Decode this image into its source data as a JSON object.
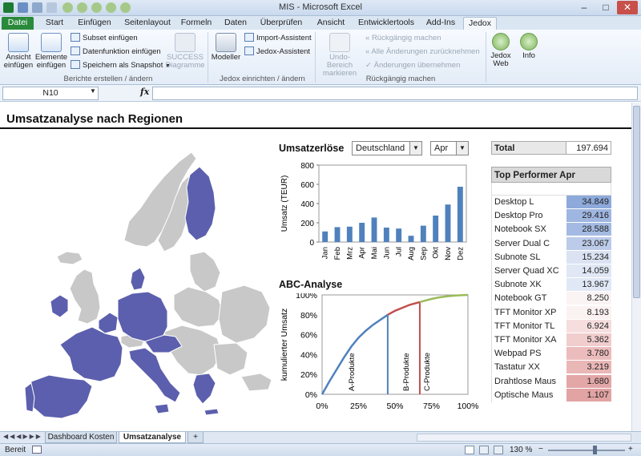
{
  "window": {
    "title": "MIS - Microsoft Excel"
  },
  "tabs": [
    {
      "label": "Datei"
    },
    {
      "label": "Start"
    },
    {
      "label": "Einfügen"
    },
    {
      "label": "Seitenlayout"
    },
    {
      "label": "Formeln"
    },
    {
      "label": "Daten"
    },
    {
      "label": "Überprüfen"
    },
    {
      "label": "Ansicht"
    },
    {
      "label": "Entwicklertools"
    },
    {
      "label": "Add-Ins"
    },
    {
      "label": "Jedox"
    }
  ],
  "ribbon": {
    "ansicht_einfuegen": [
      "Ansicht",
      "einfügen"
    ],
    "elemente_einfuegen": [
      "Elemente",
      "einfügen"
    ],
    "subset_einfuegen": "Subset einfügen",
    "datenfunktion_einfuegen": "Datenfunktion einfügen",
    "speichern_snapshot": "Speichern als Snapshot",
    "success_diagramme": [
      "SUCCESS",
      "Diagramme"
    ],
    "group_berichte": "Berichte erstellen / ändern",
    "modeller": "Modeller",
    "import_assistent": "Import-Assistent",
    "jedox_assistent": "Jedox-Assistent",
    "group_jedox": "Jedox einrichten / ändern",
    "undo_bereich": [
      "Undo-Bereich",
      "markieren"
    ],
    "rueckgaengig_machen": "Rückgängig machen",
    "alle_aenderungen": "Alle Änderungen zurücknehmen",
    "aenderungen_uebernehmen": "Änderungen übernehmen",
    "group_rueckgaengig": "Rückgängig machen",
    "jedox_web": [
      "Jedox",
      "Web"
    ],
    "info": "Info"
  },
  "formula_bar": {
    "name_box": "N10",
    "fx": "fx",
    "value": ""
  },
  "sheet": {
    "heading": "Umsatzanalyse nach Regionen",
    "umsatz_title": "Umsatzerlöse",
    "country_select": "Deutschland",
    "month_select": "Apr",
    "abc_title": "ABC-Analyse",
    "total_label": "Total",
    "total_value": "197.694",
    "top_title": "Top Performer Apr",
    "top_performers": [
      {
        "name": "Desktop L",
        "value": "34.849",
        "color": "#8eaadb"
      },
      {
        "name": "Desktop Pro",
        "value": "29.416",
        "color": "#9fb6e0"
      },
      {
        "name": "Notebook SX",
        "value": "28.588",
        "color": "#a4bae2"
      },
      {
        "name": "Server Dual C",
        "value": "23.067",
        "color": "#bccbe9"
      },
      {
        "name": "Subnote SL",
        "value": "15.234",
        "color": "#dbe3f3"
      },
      {
        "name": "Server Quad XC",
        "value": "14.059",
        "color": "#e0e7f5"
      },
      {
        "name": "Subnote XK",
        "value": "13.967",
        "color": "#e1e8f5"
      },
      {
        "name": "Notebook GT",
        "value": "8.250",
        "color": "#fbf4f4"
      },
      {
        "name": "TFT Monitor XP",
        "value": "8.193",
        "color": "#fbf2f2"
      },
      {
        "name": "TFT Monitor TL",
        "value": "6.924",
        "color": "#f6dede"
      },
      {
        "name": "TFT Monitor XA",
        "value": "5.362",
        "color": "#f1cdcd"
      },
      {
        "name": "Webpad PS",
        "value": "3.780",
        "color": "#ecbcbc"
      },
      {
        "name": "Tastatur XX",
        "value": "3.219",
        "color": "#eab7b7"
      },
      {
        "name": "Drahtlose Maus",
        "value": "1.680",
        "color": "#e3a7a7"
      },
      {
        "name": "Optische Maus",
        "value": "1.107",
        "color": "#e2a3a3"
      }
    ]
  },
  "sheet_tabs": [
    {
      "label": "Dashboard Kosten"
    },
    {
      "label": "Umsatzanalyse"
    }
  ],
  "status": {
    "ready": "Bereit",
    "zoom": "130 %"
  },
  "colors": {
    "accent": "#2a8a3c",
    "map_highlight": "#5b5fad",
    "map_base": "#c8c8c8",
    "bar": "#4f81bd",
    "abc_a": "#4f81bd",
    "abc_b": "#c0504d",
    "abc_c": "#9bbb59"
  },
  "chart_data": [
    {
      "type": "bar",
      "title": "Umsatzerlöse",
      "categories": [
        "Jan",
        "Feb",
        "Mrz",
        "Apr",
        "Mai",
        "Jun",
        "Jul",
        "Aug",
        "Sep",
        "Okt",
        "Nov",
        "Dez"
      ],
      "values": [
        110,
        155,
        160,
        200,
        255,
        150,
        140,
        65,
        170,
        275,
        390,
        575
      ],
      "xlabel": "",
      "ylabel": "Umsatz (TEUR)",
      "ylim": [
        0,
        800
      ],
      "yticks": [
        0,
        200,
        400,
        600,
        800
      ],
      "grid": false
    },
    {
      "type": "line",
      "title": "ABC-Analyse",
      "x": [
        0,
        5,
        10,
        15,
        20,
        25,
        30,
        35,
        40,
        45,
        50,
        55,
        60,
        65,
        70,
        75,
        80,
        85,
        90,
        95,
        100
      ],
      "values": [
        0,
        13,
        25,
        37,
        48,
        57,
        64,
        70,
        75,
        80,
        84,
        87,
        90,
        92,
        94,
        96,
        97.5,
        98.5,
        99.2,
        99.7,
        100
      ],
      "xlabel": "",
      "ylabel": "kumulierter Umsatz",
      "xlim": [
        0,
        100
      ],
      "ylim": [
        0,
        100
      ],
      "xticks": [
        "0%",
        "25%",
        "50%",
        "75%",
        "100%"
      ],
      "yticks": [
        "0%",
        "20%",
        "40%",
        "60%",
        "80%",
        "100%"
      ],
      "segments": [
        {
          "label": "A-Produkte",
          "x_end": 45,
          "color": "#4f81bd"
        },
        {
          "label": "B-Produkte",
          "x_end": 67,
          "color": "#c0504d"
        },
        {
          "label": "C-Produkte",
          "x_end": 100,
          "color": "#9bbb59"
        }
      ]
    }
  ]
}
